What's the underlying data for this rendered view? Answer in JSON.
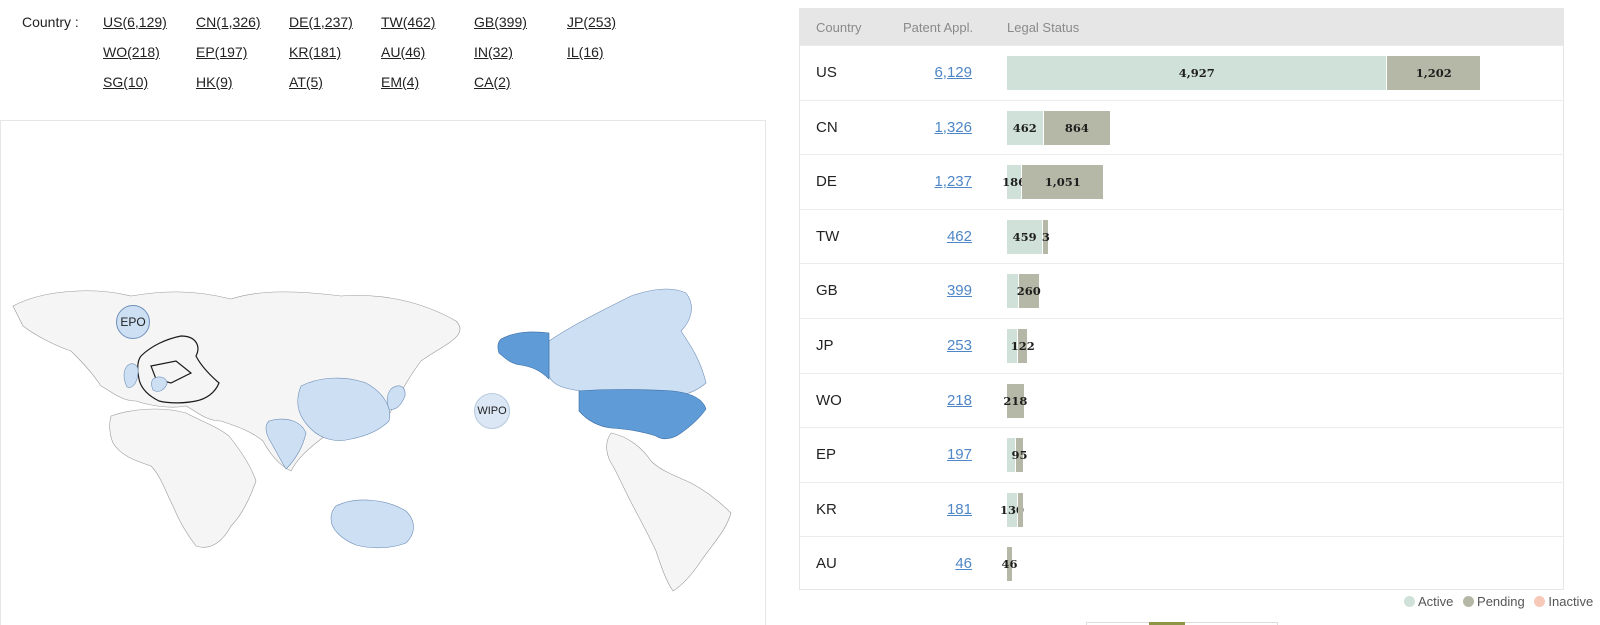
{
  "filter": {
    "label": "Country :",
    "links": [
      {
        "text": "US(6,129)"
      },
      {
        "text": "CN(1,326)"
      },
      {
        "text": "DE(1,237)"
      },
      {
        "text": "TW(462)"
      },
      {
        "text": "GB(399)"
      },
      {
        "text": "JP(253)"
      },
      {
        "text": "WO(218)"
      },
      {
        "text": "EP(197)"
      },
      {
        "text": "KR(181)"
      },
      {
        "text": "AU(46)"
      },
      {
        "text": "IN(32)"
      },
      {
        "text": "IL(16)"
      },
      {
        "text": "SG(10)"
      },
      {
        "text": "HK(9)"
      },
      {
        "text": "AT(5)"
      },
      {
        "text": "EM(4)"
      },
      {
        "text": "CA(2)"
      }
    ]
  },
  "map": {
    "bubbles": {
      "epo": "EPO",
      "wipo": "WIPO"
    },
    "colors": {
      "light": "#cddff3",
      "dark": "#5f9bd6",
      "base": "#f5f5f5"
    }
  },
  "table": {
    "headers": {
      "country": "Country",
      "patent": "Patent Appl.",
      "status": "Legal Status"
    },
    "max_value": 6129,
    "rows": [
      {
        "country": "US",
        "count": "6,129",
        "active": 4927,
        "pending": 1202,
        "active_label": "4,927",
        "pending_label": "1,202"
      },
      {
        "country": "CN",
        "count": "1,326",
        "active": 462,
        "pending": 864,
        "active_label": "462",
        "pending_label": "864"
      },
      {
        "country": "DE",
        "count": "1,237",
        "active": 186,
        "pending": 1051,
        "active_label": "186",
        "pending_label": "1,051"
      },
      {
        "country": "TW",
        "count": "462",
        "active": 459,
        "pending": 3,
        "active_label": "459",
        "pending_label": "3"
      },
      {
        "country": "GB",
        "count": "399",
        "active": 139,
        "pending": 260,
        "active_label": "",
        "pending_label": "260"
      },
      {
        "country": "JP",
        "count": "253",
        "active": 131,
        "pending": 122,
        "active_label": "",
        "pending_label": "122"
      },
      {
        "country": "WO",
        "count": "218",
        "active": 0,
        "pending": 218,
        "active_label": "",
        "pending_label": "218"
      },
      {
        "country": "EP",
        "count": "197",
        "active": 102,
        "pending": 95,
        "active_label": "",
        "pending_label": "95"
      },
      {
        "country": "KR",
        "count": "181",
        "active": 130,
        "pending": 51,
        "active_label": "130",
        "pending_label": ""
      },
      {
        "country": "AU",
        "count": "46",
        "active": 0,
        "pending": 46,
        "active_label": "",
        "pending_label": "46"
      }
    ]
  },
  "legend": [
    {
      "label": "Active",
      "color": "#cfe1d8"
    },
    {
      "label": "Pending",
      "color": "#b5b8a6"
    },
    {
      "label": "Inactive",
      "color": "#f6c9b8"
    }
  ]
}
